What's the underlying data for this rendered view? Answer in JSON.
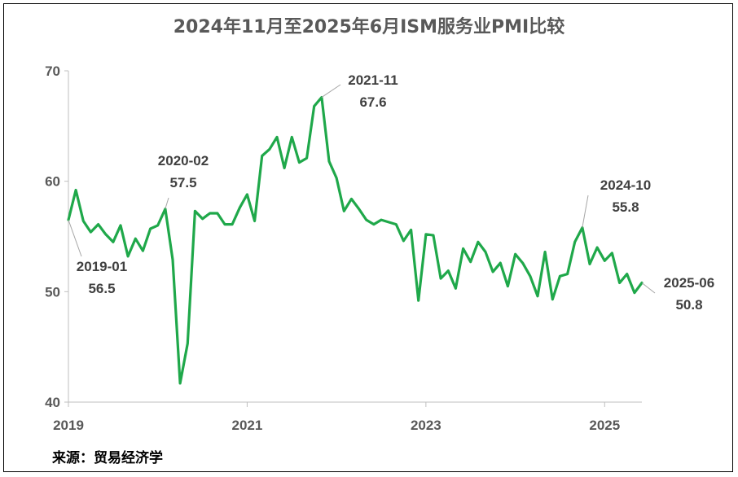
{
  "chart_data": {
    "type": "line",
    "title": "2024年11月至2025年6月ISM服务业PMI比较",
    "source": "来源：贸易经济学",
    "line_color": "#1fa84a",
    "ylim": [
      40,
      70
    ],
    "yticks": [
      40,
      50,
      60,
      70
    ],
    "xlim": [
      "2019-01",
      "2025-06"
    ],
    "xticks": [
      "2019",
      "2021",
      "2023",
      "2025"
    ],
    "grid": false,
    "legend": "none",
    "series": [
      {
        "values": [
          [
            "2019-01",
            56.5
          ],
          [
            "2019-02",
            59.2
          ],
          [
            "2019-03",
            56.4
          ],
          [
            "2019-04",
            55.4
          ],
          [
            "2019-05",
            56.1
          ],
          [
            "2019-06",
            55.2
          ],
          [
            "2019-07",
            54.5
          ],
          [
            "2019-08",
            56.0
          ],
          [
            "2019-09",
            53.2
          ],
          [
            "2019-10",
            54.8
          ],
          [
            "2019-11",
            53.7
          ],
          [
            "2019-12",
            55.7
          ],
          [
            "2020-01",
            56.0
          ],
          [
            "2020-02",
            57.5
          ],
          [
            "2020-03",
            52.9
          ],
          [
            "2020-04",
            41.7
          ],
          [
            "2020-05",
            45.3
          ],
          [
            "2020-06",
            57.3
          ],
          [
            "2020-07",
            56.6
          ],
          [
            "2020-08",
            57.1
          ],
          [
            "2020-09",
            57.1
          ],
          [
            "2020-10",
            56.1
          ],
          [
            "2020-11",
            56.1
          ],
          [
            "2020-12",
            57.6
          ],
          [
            "2021-01",
            58.8
          ],
          [
            "2021-02",
            56.4
          ],
          [
            "2021-03",
            62.3
          ],
          [
            "2021-04",
            62.9
          ],
          [
            "2021-05",
            64.0
          ],
          [
            "2021-06",
            61.2
          ],
          [
            "2021-07",
            64.0
          ],
          [
            "2021-08",
            61.7
          ],
          [
            "2021-09",
            62.1
          ],
          [
            "2021-10",
            66.8
          ],
          [
            "2021-11",
            67.6
          ],
          [
            "2021-12",
            61.8
          ],
          [
            "2022-01",
            60.3
          ],
          [
            "2022-02",
            57.3
          ],
          [
            "2022-03",
            58.4
          ],
          [
            "2022-04",
            57.5
          ],
          [
            "2022-05",
            56.5
          ],
          [
            "2022-06",
            56.1
          ],
          [
            "2022-07",
            56.5
          ],
          [
            "2022-08",
            56.3
          ],
          [
            "2022-09",
            56.1
          ],
          [
            "2022-10",
            54.6
          ],
          [
            "2022-11",
            55.6
          ],
          [
            "2022-12",
            49.2
          ],
          [
            "2023-01",
            55.2
          ],
          [
            "2023-02",
            55.1
          ],
          [
            "2023-03",
            51.2
          ],
          [
            "2023-04",
            51.9
          ],
          [
            "2023-05",
            50.3
          ],
          [
            "2023-06",
            53.9
          ],
          [
            "2023-07",
            52.7
          ],
          [
            "2023-08",
            54.5
          ],
          [
            "2023-09",
            53.6
          ],
          [
            "2023-10",
            51.8
          ],
          [
            "2023-11",
            52.6
          ],
          [
            "2023-12",
            50.5
          ],
          [
            "2024-01",
            53.4
          ],
          [
            "2024-02",
            52.6
          ],
          [
            "2024-03",
            51.4
          ],
          [
            "2024-04",
            49.6
          ],
          [
            "2024-05",
            53.6
          ],
          [
            "2024-06",
            49.3
          ],
          [
            "2024-07",
            51.4
          ],
          [
            "2024-08",
            51.6
          ],
          [
            "2024-09",
            54.5
          ],
          [
            "2024-10",
            55.8
          ],
          [
            "2024-11",
            52.5
          ],
          [
            "2024-12",
            54.0
          ],
          [
            "2025-01",
            52.8
          ],
          [
            "2025-02",
            53.5
          ],
          [
            "2025-03",
            50.8
          ],
          [
            "2025-04",
            51.6
          ],
          [
            "2025-05",
            49.9
          ],
          [
            "2025-06",
            50.8
          ]
        ]
      }
    ],
    "annotations": [
      {
        "date": "2019-01",
        "label": "2019-01",
        "value_label": "56.5"
      },
      {
        "date": "2020-02",
        "label": "2020-02",
        "value_label": "57.5"
      },
      {
        "date": "2021-11",
        "label": "2021-11",
        "value_label": "67.6"
      },
      {
        "date": "2024-10",
        "label": "2024-10",
        "value_label": "55.8"
      },
      {
        "date": "2025-06",
        "label": "2025-06",
        "value_label": "50.8"
      }
    ]
  }
}
